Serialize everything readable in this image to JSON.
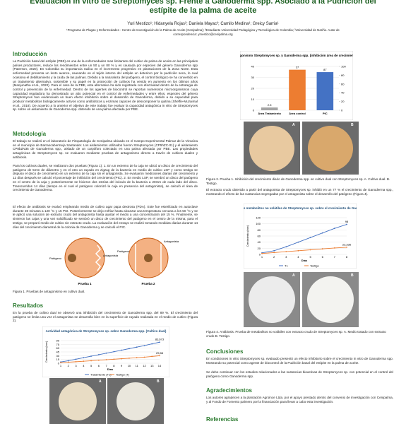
{
  "header": {
    "title": "Evaluación in vitro de Streptomyces sp. Frente a Ganoderma spp. Asociado a la Pudrición del estípite de la palma de aceite",
    "authors": "Yuri Mestizo¹; Hidanyela Rojas²; Daniela Mayac³; Camilo Medina¹; Greicy Sarria¹",
    "affiliations": "¹Programa de Plagas y Enfermedades - Centro de Investigación de la Palma de Aceite (Cenipalma); ²Estudiante Universidad Pedagógica y Tecnológica de Colombia; ³Universidad de Nariño. Autor de correspondencia: ymestizo@cenipalma.org"
  },
  "sections": {
    "intro": {
      "title": "Introducción",
      "text": "La Pudrición basal del estípite (PBE) es una de la enfermedades mas limitantes del cultivo de palma de aceite en las principales países productores, reduce los rendimientos entre un 50 y un 80 % y es causada por especies del género Ganoderma spp (Paterson, 2020). En Colombia su importancia radica en el incremento progresivo en plantaciones de la Zona Norte. Esta enfermedad presenta un lento avance, causando en el tejido interno del estípite un deterioro por la pudrición seca, lo cual ocasiona el debilitamiento y la caída de las palmas. Debido a la naturaleza del patógeno, el control biológico se ha convertido en un tratamiento alternativo, sostenible y su papel en la protección de cultivos ha venido en aumento en los últimos años (Manjunatha et al., 2020). Para el caso de la PBE, esta alternativa ha sido registrada con efectividad dentro de la estrategia de control y prevención de la enfermedad. Dentro de los agentes de biocontrol se reportan numerosos microorganismos cuya capacidad reguladora ha demostrado un alto potencial en el control de enfermedades y entre ellos, especies del género Streptomyces han evidenciado un buen efecto inhibitorio sobre el desarrollo de Ganoderma, debido a su capacidad para producir metabolitos biológicamente activos como antibióticos y enzimas capaces de descomponer la quitina (Sheffie-Muzaimal et al., 2018). De acuerdo a lo anterior el objetivo de este trabajo fue evaluar la capacidad antagónica in vitro de Streptomyces sp. sobre un aislamiento de Ganoderma spp. obtenido de una palma afectada por PBE."
    },
    "methods": {
      "title": "Metodología",
      "p1": "El trabajo se realizó en el laboratorio de Fitopatología de Cenipalma ubicado en el Campo Experimental Palmar de la Vizcaína en el municipio de Barrancabermeja Santander. Los aislamientos utilizados fueron Streptomyces (CP5hZC-01) y el aislamiento CP8bZN35 de Ganoderma spp., aislado de un carpóforo colectado en una palma afectada por PBE. Las propiedades antagónicas de Streptomyces sp. se evaluaron mediante pruebas de antagonismo directo a través de cultivos duales y antibiosis.",
      "p2": "Para los cultivos duales, se realizaron dos pruebas (Figura 1): 1. En un extremo de la caja se ubicó un disco de crecimiento del patógeno de 5mm de diámetro y en el otro un rayado en zigzag de la bacteria en medio de cultivo LSP y como testigo se dispuso el disco de crecimiento en un extremo de la caja sin el antagonista. Se evaluaron mediciones diarias del crecimiento y 12 días después se calculó el porcentaje de inhibición del crecimiento (PIC). 2. En medio LSP, se sembró un disco del patógeno en el centro de la caja y posteriormente se hicieron dos estrías del inóculo de la bacteria a 20mm de cada lado del disco. Transcurridos 14 días (tiempo en el cual el patógeno colonizó la caja en presencia del antagonista), se calculó el área de crecimiento de Ganoderma.",
      "p3": "El efecto de antibiosis se evaluó empleando medio de cultivo agar papa dextrosa (PDA). Este fue esterilizado en autoclave durante 30 minutos a 120 °C y 15 PSI. Posteriormente se dejo enfriar hasta alcanzar una temperatura cercana a los 50 °C y se le aplicó una solución de extracto crudo del antagonista hasta ajustar el medio a una concentración del 15 %. Finalmente, se sirvieron las cajas y una vez solidificado se sembró un disco de crecimiento del patógeno en el centro de la misma; para el testigo, se preparó medio de cultivo sin extracto crudo. La evaluación del ensayo se realizó tomando medidas diarias durante 14 días del crecimiento diametral de la colonia de Ganoderma y se calculó el PIC."
    },
    "figure1": {
      "labels": [
        "Patógeno",
        "Antagonista",
        "Patógeno",
        "Antagonista"
      ],
      "tests": [
        "Prueba 1",
        "Prueba 2"
      ],
      "caption": "Figura 1. Pruebas de antagonismo en cultivo dual."
    },
    "results": {
      "title": "Resultados",
      "text": "En la prueba de cultivo dual se observó una inhibición del crecimiento de Ganoderma spp. del 89 %. El crecimiento del patógeno se limita una vez el antagonista se desarrolla bien en la superficie de rayado realizada en el medio de cultivo (Figura 2)."
    },
    "figure2": {
      "caption": "Figura 2. Prueba 1. Inhibición del crecimiento diario de Ganoderma spp. en cultivo dual con Streptomyces sp. A. Cultivo dual. B. Testigo.",
      "text": "El extracto crudo obtenido a partir del antagonista de Streptomyces sp. inhibió en un 77 % el crecimiento de Ganoderma spp., mostrando el efecto de las sustancias segregadas por el antagonista sobre el desarrollo del patógeno (Figura 4)."
    },
    "figure4": {
      "caption": "Figura 4. Antibiosis. Prueba de metabolitos no volátiles con extracto crudo de Streptomyces sp. A. Medio tratado con extracto crudo B. Testigo."
    },
    "conclusions": {
      "title": "Conclusiones",
      "p1": "En condiciones in vitro Streptomyces sp. evaluado presentó un efecto inhibitorio sobre el crecimiento in vitro de Ganoderma spp. Mostrando su potencial como agente de biocontrol de la Pudrición basal del estípite en la palma de aceite.",
      "p2": "Se debe continuar con los estudios relacionados a las sustancias bioactivas de Streptomyces sp. con potencial en el control del patógeno como Ganoderma spp."
    },
    "thanks": {
      "title": "Agradecimientos",
      "text": "Los autores agradecen a la plantación Agroince Ltda. por el apoyo prestado dentro del convenio de investigación con Cenipalma, y al Fondo de Fomento palmero por la financiación para llevar a cabo esta investigación."
    },
    "refs": {
      "title": "Referencias"
    },
    "photo_labels": [
      "A",
      "B",
      "A",
      "B",
      "A",
      "B"
    ]
  },
  "charts": [
    {
      "type": "bar",
      "title": "Prueba de antagonismo Streptomyces sp. y Ganoderma spp. (inhibición área de crecimiento cultivo dual)",
      "categories": [
        "Área Tratamiento",
        "Área control",
        "PIC"
      ],
      "values": [
        2.5,
        37,
        87
      ],
      "colors": [
        "#a5a5a5",
        "#ed7d31",
        "#4472c4"
      ],
      "axes": [
        "y",
        "y",
        "y2"
      ],
      "ylim": [
        0,
        40
      ],
      "yticks": [
        0,
        10,
        20,
        30,
        40
      ],
      "y2lim": [
        0,
        100
      ],
      "y2ticks": [
        0,
        20,
        40,
        60,
        80,
        100
      ]
    },
    {
      "type": "line",
      "title": "Actividad antagónica de Streptomyces sp. sobre Ganoderma spp. (Cultivo dual)",
      "xlabel": "Días",
      "ylabel": "Crecimiento (mm)",
      "x": [
        1,
        2,
        3,
        4,
        5,
        6,
        7,
        8,
        9,
        10,
        11,
        12,
        13,
        14
      ],
      "xlim": [
        1,
        14
      ],
      "ylim": [
        0,
        90
      ],
      "yticks": [
        0,
        15,
        30,
        45,
        60,
        75,
        90
      ],
      "series": [
        {
          "name": "Tratamiento (T1)",
          "color": "#4472c4",
          "values": [
            5,
            10,
            16,
            22,
            28,
            34,
            40,
            46,
            52,
            58,
            64,
            70,
            77,
            83.673
          ],
          "value_labels": [
            null,
            null,
            null,
            null,
            null,
            null,
            null,
            null,
            null,
            null,
            null,
            null,
            null,
            "83,673"
          ]
        },
        {
          "name": "Testigo (T)",
          "color": "#ed7d31",
          "values": [
            2,
            4,
            6,
            8,
            10,
            12,
            14,
            16,
            18,
            20,
            22,
            24,
            27,
            29.88
          ],
          "value_labels": [
            null,
            null,
            null,
            null,
            null,
            null,
            null,
            null,
            null,
            null,
            null,
            null,
            null,
            "29,88"
          ]
        }
      ]
    },
    {
      "type": "line",
      "title": "Efecto de los metabolitos no volátiles de Streptomyces sp. sobre el crecimiento de Ganoderma sp.",
      "xlabel": "Días",
      "ylabel": "Crecimiento (mm)",
      "x": [
        1,
        2,
        3,
        4,
        5,
        6,
        7,
        8
      ],
      "xlim": [
        1,
        8
      ],
      "ylim": [
        0,
        120
      ],
      "yticks": [
        0,
        20,
        40,
        60,
        80,
        100,
        120
      ],
      "series": [
        {
          "name": "T1",
          "color": "#4472c4",
          "values": [
            5,
            12,
            25,
            40,
            55,
            70,
            85,
            98
          ],
          "value_labels": [
            null,
            null,
            null,
            null,
            null,
            null,
            null,
            "98"
          ]
        },
        {
          "name": "Testigo",
          "color": "#ed7d31",
          "values": [
            3,
            6,
            9,
            12,
            15,
            18,
            21,
            23.336
          ],
          "value_labels": [
            null,
            null,
            null,
            null,
            null,
            null,
            null,
            "23,336"
          ]
        }
      ]
    }
  ]
}
